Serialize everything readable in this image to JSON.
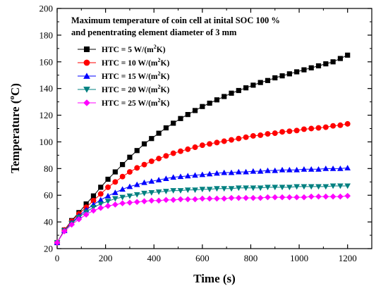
{
  "chart_data": {
    "type": "line",
    "title_lines": [
      "Maximum temperature of coin cell at inital SOC 100 %",
      "and penentrating element diameter of 3 mm"
    ],
    "xlabel": "Time (s)",
    "ylabel_main": "Temperature (",
    "ylabel_sup": "o",
    "ylabel_end": "C)",
    "xlim": [
      0,
      1300
    ],
    "ylim": [
      20,
      200
    ],
    "xticks": [
      0,
      200,
      400,
      600,
      800,
      1000,
      1200
    ],
    "yticks": [
      20,
      40,
      60,
      80,
      100,
      120,
      140,
      160,
      180,
      200
    ],
    "legend_position": "top-left",
    "x": [
      0,
      30,
      60,
      90,
      120,
      150,
      180,
      210,
      240,
      270,
      300,
      330,
      360,
      390,
      420,
      450,
      480,
      510,
      540,
      570,
      600,
      630,
      660,
      690,
      720,
      750,
      780,
      810,
      840,
      870,
      900,
      930,
      960,
      990,
      1020,
      1050,
      1080,
      1110,
      1140,
      1170,
      1200
    ],
    "series": [
      {
        "name_pre": "HTC = 5 W/(m",
        "name_sup": "2",
        "name_post": "K)",
        "color": "#000000",
        "marker": "square",
        "values": [
          24.5,
          34,
          41,
          47,
          53.5,
          59.5,
          66,
          72,
          77.5,
          83,
          88.5,
          93.5,
          98.5,
          102.5,
          106.5,
          110.5,
          114,
          117.5,
          120.5,
          123.5,
          126.5,
          129,
          131.5,
          134,
          136.5,
          138.5,
          140.5,
          142.5,
          144.5,
          146,
          148,
          149.5,
          151,
          152.5,
          154,
          155.5,
          157,
          158.5,
          160,
          162.5,
          165
        ]
      },
      {
        "name_pre": "HTC = 10 W/(m",
        "name_sup": "2",
        "name_post": "K)",
        "color": "#ff0000",
        "marker": "circle",
        "values": [
          24.5,
          34,
          40.5,
          46,
          51,
          56,
          61,
          66,
          70,
          74,
          77.5,
          80.5,
          83,
          85.5,
          87.5,
          89.5,
          91.5,
          93,
          94.5,
          96,
          97.5,
          98.5,
          99.5,
          100.5,
          101.5,
          102.5,
          103.5,
          104.5,
          105,
          106,
          106.5,
          107.5,
          108,
          108.5,
          109.5,
          110,
          110.5,
          111,
          112,
          112.5,
          113.5
        ]
      },
      {
        "name_pre": "HTC = 15 W/(m",
        "name_sup": "2",
        "name_post": "K)",
        "color": "#0000ff",
        "marker": "triangle-up",
        "values": [
          24.5,
          33.5,
          39.5,
          44.5,
          49,
          53,
          56.5,
          59.5,
          62,
          64.5,
          66.5,
          68,
          69.5,
          70.5,
          71.5,
          72.5,
          73.5,
          74,
          74.5,
          75,
          75.5,
          76,
          76.5,
          77,
          77,
          77.5,
          77.5,
          78,
          78,
          78.5,
          78.5,
          79,
          79,
          79,
          79.5,
          79.5,
          79.5,
          80,
          80,
          80,
          80.5
        ]
      },
      {
        "name_pre": "HTC = 20 W/(m",
        "name_sup": "2",
        "name_post": "K)",
        "color": "#008080",
        "marker": "triangle-down",
        "values": [
          24.5,
          33.5,
          39,
          43.5,
          47.5,
          51,
          53.5,
          55.5,
          57.5,
          58.5,
          59.5,
          60.5,
          61.5,
          62,
          62.5,
          63,
          63.5,
          63.5,
          64,
          64,
          64.5,
          64.5,
          65,
          65,
          65,
          65.5,
          65.5,
          65.5,
          65.5,
          66,
          66,
          66,
          66,
          66.5,
          66.5,
          66.5,
          66.5,
          66.5,
          67,
          67,
          67
        ]
      },
      {
        "name_pre": "HTC = 25 W/(m",
        "name_sup": "2",
        "name_post": "K)",
        "color": "#ff00ff",
        "marker": "diamond",
        "values": [
          24.5,
          33,
          38,
          42,
          45.5,
          48.5,
          50.5,
          52,
          53,
          54,
          54.5,
          55,
          55.5,
          56,
          56,
          56.5,
          56.5,
          57,
          57,
          57,
          57.5,
          57.5,
          57.5,
          57.5,
          58,
          58,
          58,
          58,
          58,
          58.5,
          58.5,
          58.5,
          58.5,
          58.5,
          58.5,
          59,
          59,
          59,
          59,
          59,
          59.5
        ]
      }
    ]
  }
}
